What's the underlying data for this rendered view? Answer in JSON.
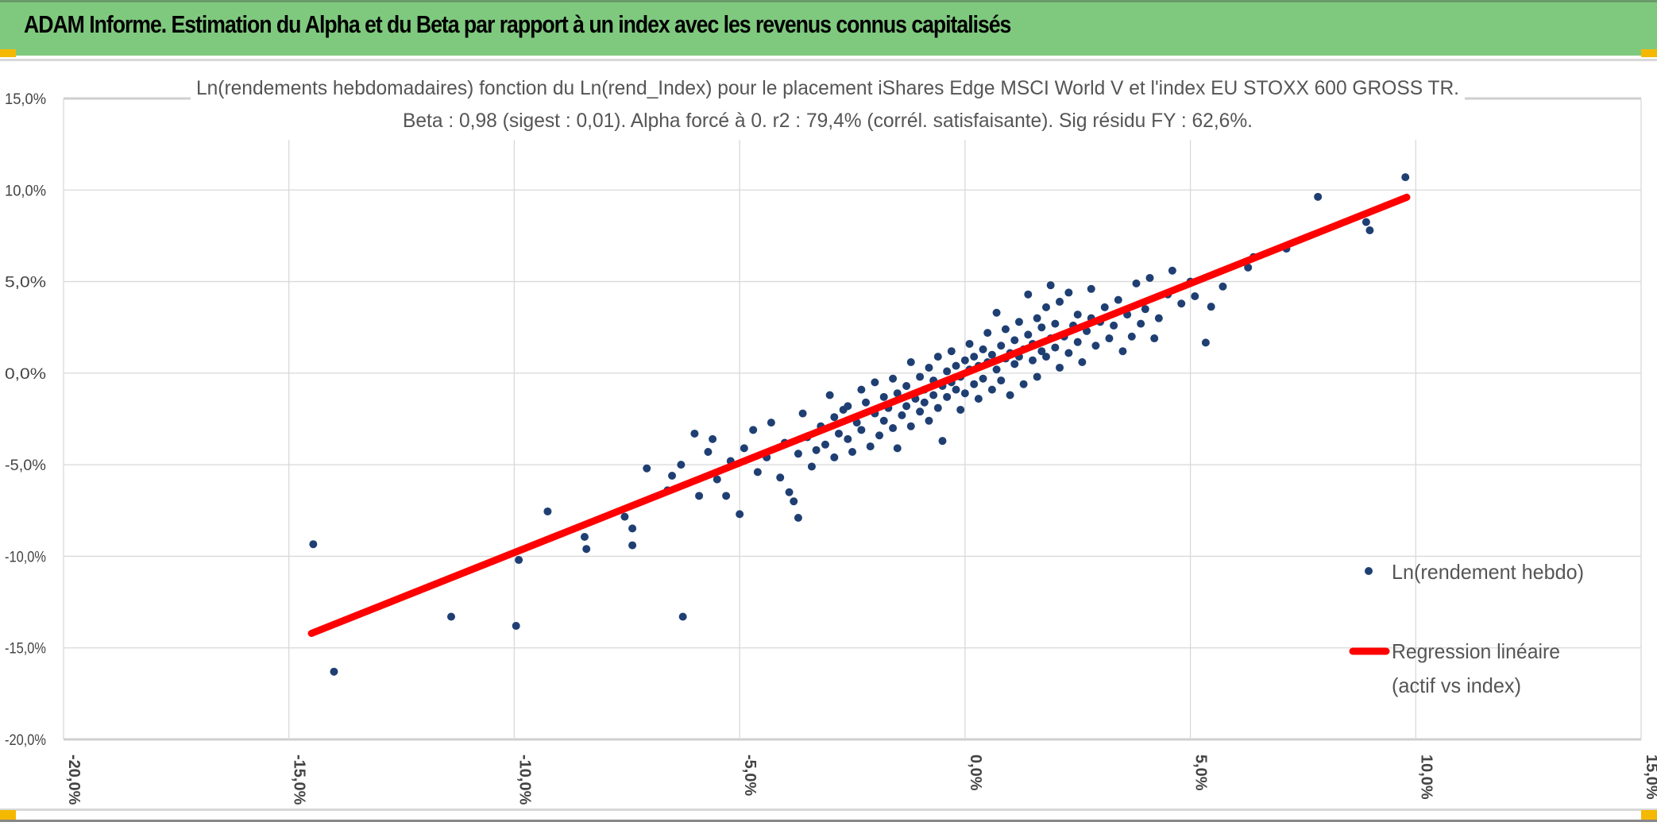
{
  "header": {
    "title": "ADAM Informe. Estimation du Alpha et du Beta par rapport à un index avec les revenus connus capitalisés",
    "bg_color": "#7fc97f"
  },
  "chart_data": {
    "type": "scatter",
    "title_line1": "Ln(rendements hebdomadaires) fonction du Ln(rend_Index) pour le placement iShares Edge MSCI World V et l'index EU STOXX 600 GROSS TR.",
    "title_line2": "Beta : 0,98 (sigest : 0,01). Alpha forcé à 0. r2 : 79,4% (corrél. satisfaisante). Sig résidu FY : 62,6%.",
    "xlim": [
      -20,
      15
    ],
    "ylim": [
      -20,
      15
    ],
    "x_ticks": [
      "-20,0%",
      "-15,0%",
      "-10,0%",
      "-5,0%",
      "0,0%",
      "5,0%",
      "10,0%",
      "15,0%"
    ],
    "y_ticks": [
      "15,0%",
      "10,0%",
      "5,0%",
      "0,0%",
      "-5,0%",
      "-10,0%",
      "-15,0%",
      "-20,0%"
    ],
    "grid": true,
    "legend_position": "right",
    "series": [
      {
        "name": "Ln(rendement hebdo)",
        "color": "#1f3f73",
        "points": [
          [
            -14.46,
            -9.34
          ],
          [
            -14.0,
            -16.3
          ],
          [
            -11.4,
            -13.3
          ],
          [
            -9.96,
            -13.8
          ],
          [
            -9.9,
            -10.2
          ],
          [
            -9.26,
            -7.55
          ],
          [
            -8.44,
            -8.94
          ],
          [
            -8.4,
            -9.6
          ],
          [
            -7.55,
            -7.84
          ],
          [
            -7.38,
            -8.48
          ],
          [
            -7.38,
            -9.4
          ],
          [
            -7.06,
            -5.2
          ],
          [
            -6.26,
            -13.3
          ],
          [
            -6.0,
            -3.3
          ],
          [
            -6.6,
            -6.4
          ],
          [
            -6.5,
            -5.6
          ],
          [
            -6.3,
            -5.0
          ],
          [
            -5.9,
            -6.7
          ],
          [
            -5.7,
            -4.3
          ],
          [
            -5.6,
            -3.6
          ],
          [
            -5.5,
            -5.8
          ],
          [
            -5.3,
            -6.7
          ],
          [
            -5.2,
            -4.8
          ],
          [
            -5.0,
            -7.7
          ],
          [
            -4.9,
            -4.1
          ],
          [
            -4.7,
            -3.1
          ],
          [
            -4.6,
            -5.4
          ],
          [
            -4.4,
            -4.6
          ],
          [
            -4.3,
            -2.7
          ],
          [
            -4.1,
            -5.7
          ],
          [
            -4.0,
            -3.8
          ],
          [
            -3.9,
            -6.5
          ],
          [
            -3.8,
            -7.0
          ],
          [
            -3.7,
            -7.9
          ],
          [
            -3.7,
            -4.4
          ],
          [
            -3.6,
            -2.2
          ],
          [
            -3.5,
            -3.5
          ],
          [
            -3.4,
            -5.1
          ],
          [
            -3.3,
            -4.2
          ],
          [
            -3.2,
            -2.9
          ],
          [
            -3.1,
            -3.9
          ],
          [
            -3.0,
            -1.2
          ],
          [
            -2.9,
            -2.4
          ],
          [
            -2.9,
            -4.6
          ],
          [
            -2.8,
            -3.3
          ],
          [
            -2.7,
            -2.0
          ],
          [
            -2.6,
            -1.8
          ],
          [
            -2.6,
            -3.6
          ],
          [
            -2.5,
            -4.3
          ],
          [
            -2.4,
            -2.7
          ],
          [
            -2.3,
            -0.9
          ],
          [
            -2.3,
            -3.1
          ],
          [
            -2.2,
            -1.6
          ],
          [
            -2.1,
            -4.0
          ],
          [
            -2.0,
            -2.2
          ],
          [
            -2.0,
            -0.5
          ],
          [
            -1.9,
            -3.4
          ],
          [
            -1.8,
            -1.3
          ],
          [
            -1.8,
            -2.6
          ],
          [
            -1.7,
            -1.9
          ],
          [
            -1.6,
            -0.3
          ],
          [
            -1.6,
            -3.0
          ],
          [
            -1.5,
            -4.1
          ],
          [
            -1.5,
            -1.1
          ],
          [
            -1.4,
            -2.3
          ],
          [
            -1.3,
            -0.7
          ],
          [
            -1.3,
            -1.8
          ],
          [
            -1.2,
            0.6
          ],
          [
            -1.2,
            -2.9
          ],
          [
            -1.1,
            -1.4
          ],
          [
            -1.0,
            -0.2
          ],
          [
            -1.0,
            -2.1
          ],
          [
            -0.9,
            -0.9
          ],
          [
            -0.9,
            -1.6
          ],
          [
            -0.8,
            0.3
          ],
          [
            -0.8,
            -2.6
          ],
          [
            -0.7,
            -1.2
          ],
          [
            -0.7,
            -0.4
          ],
          [
            -0.6,
            0.9
          ],
          [
            -0.6,
            -1.9
          ],
          [
            -0.5,
            -0.7
          ],
          [
            -0.5,
            -3.7
          ],
          [
            -0.4,
            0.1
          ],
          [
            -0.4,
            -1.3
          ],
          [
            -0.3,
            -0.5
          ],
          [
            -0.3,
            1.2
          ],
          [
            -0.2,
            -0.9
          ],
          [
            -0.2,
            0.4
          ],
          [
            -0.1,
            -2.0
          ],
          [
            -0.1,
            -0.2
          ],
          [
            0.0,
            0.7
          ],
          [
            0.0,
            -1.1
          ],
          [
            0.1,
            0.2
          ],
          [
            0.1,
            1.6
          ],
          [
            0.2,
            -0.6
          ],
          [
            0.2,
            0.9
          ],
          [
            0.3,
            -1.4
          ],
          [
            0.3,
            0.4
          ],
          [
            0.4,
            1.3
          ],
          [
            0.4,
            -0.3
          ],
          [
            0.5,
            2.2
          ],
          [
            0.5,
            0.6
          ],
          [
            0.6,
            -0.9
          ],
          [
            0.6,
            1.0
          ],
          [
            0.7,
            0.2
          ],
          [
            0.7,
            3.3
          ],
          [
            0.8,
            1.5
          ],
          [
            0.8,
            -0.4
          ],
          [
            0.9,
            0.8
          ],
          [
            0.9,
            2.4
          ],
          [
            1.0,
            1.1
          ],
          [
            1.0,
            -1.2
          ],
          [
            1.1,
            0.5
          ],
          [
            1.1,
            1.8
          ],
          [
            1.2,
            2.8
          ],
          [
            1.2,
            0.9
          ],
          [
            1.3,
            1.3
          ],
          [
            1.3,
            -0.6
          ],
          [
            1.4,
            2.1
          ],
          [
            1.4,
            4.3
          ],
          [
            1.5,
            0.7
          ],
          [
            1.5,
            1.6
          ],
          [
            1.6,
            3.0
          ],
          [
            1.6,
            -0.2
          ],
          [
            1.7,
            1.2
          ],
          [
            1.7,
            2.5
          ],
          [
            1.8,
            0.9
          ],
          [
            1.8,
            3.6
          ],
          [
            1.9,
            1.9
          ],
          [
            1.9,
            4.8
          ],
          [
            2.0,
            1.4
          ],
          [
            2.0,
            2.7
          ],
          [
            2.1,
            0.3
          ],
          [
            2.1,
            3.9
          ],
          [
            2.2,
            2.0
          ],
          [
            2.3,
            1.1
          ],
          [
            2.3,
            4.4
          ],
          [
            2.4,
            2.6
          ],
          [
            2.5,
            1.7
          ],
          [
            2.5,
            3.2
          ],
          [
            2.6,
            0.6
          ],
          [
            2.7,
            2.3
          ],
          [
            2.8,
            4.6
          ],
          [
            2.8,
            3.0
          ],
          [
            2.9,
            1.5
          ],
          [
            3.0,
            2.8
          ],
          [
            3.1,
            3.6
          ],
          [
            3.2,
            1.9
          ],
          [
            3.3,
            2.6
          ],
          [
            3.4,
            4.0
          ],
          [
            3.5,
            1.2
          ],
          [
            3.6,
            3.2
          ],
          [
            3.7,
            2.0
          ],
          [
            3.8,
            4.9
          ],
          [
            3.9,
            2.7
          ],
          [
            4.0,
            3.5
          ],
          [
            4.1,
            5.2
          ],
          [
            4.2,
            1.9
          ],
          [
            4.3,
            3.0
          ],
          [
            4.5,
            4.3
          ],
          [
            4.6,
            5.6
          ],
          [
            4.8,
            3.8
          ],
          [
            5.0,
            5.0
          ],
          [
            5.1,
            4.2
          ],
          [
            5.34,
            1.67
          ],
          [
            5.46,
            3.63
          ],
          [
            5.72,
            4.73
          ],
          [
            6.28,
            5.77
          ],
          [
            6.4,
            6.34
          ],
          [
            7.13,
            6.8
          ],
          [
            7.83,
            9.63
          ],
          [
            8.9,
            8.25
          ],
          [
            8.98,
            7.8
          ],
          [
            9.77,
            10.7
          ]
        ]
      },
      {
        "name": "Regression linéaire (actif vs index)",
        "name_line1": "Regression linéaire",
        "name_line2": "(actif vs index)",
        "color": "#ff0000",
        "slope": 0.98,
        "intercept": 0,
        "x_range": [
          -14.5,
          9.8
        ]
      }
    ]
  }
}
